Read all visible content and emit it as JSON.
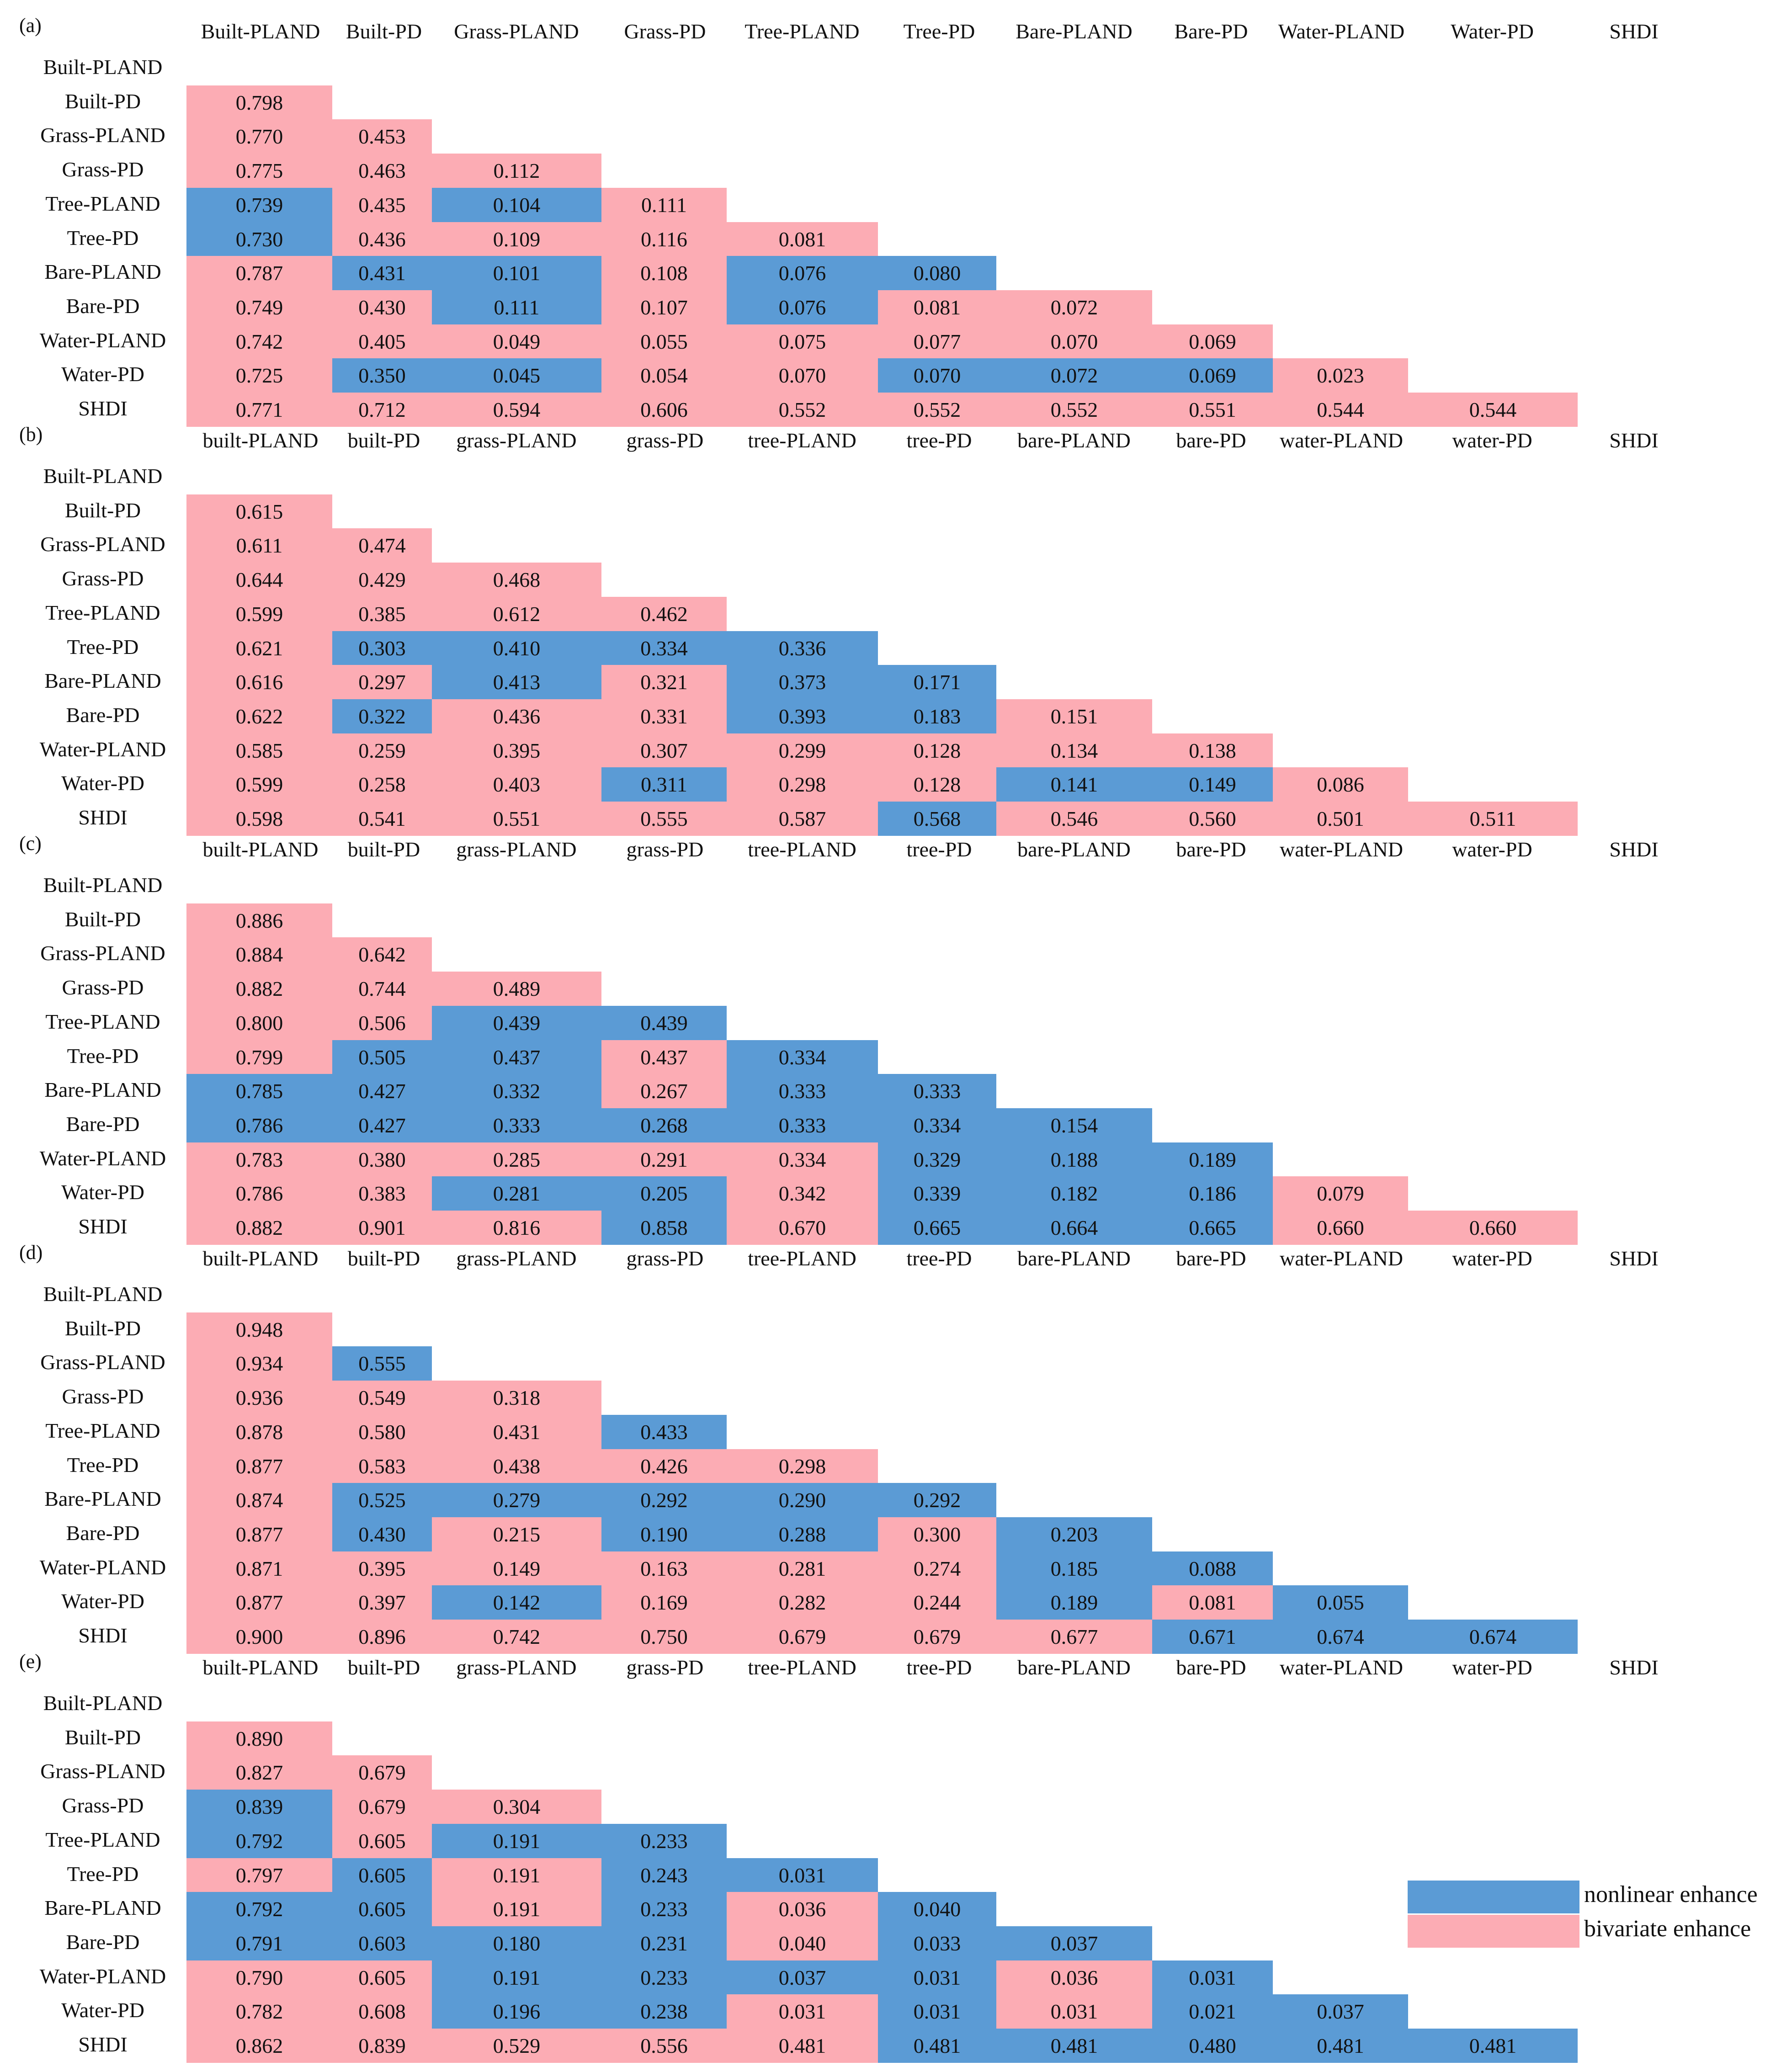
{
  "colors": {
    "nonlinear": "#5B9BD5",
    "bivariate": "#FCACB4"
  },
  "legend": {
    "nonlinear_label": "nonlinear enhance",
    "bivariate_label": "bivariate enhance"
  },
  "chart_data": {
    "type": "table",
    "row_labels": [
      "Built-PLAND",
      "Built-PD",
      "Grass-PLAND",
      "Grass-PD",
      "Tree-PLAND",
      "Tree-PD",
      "Bare-PLAND",
      "Bare-PD",
      "Water-PLAND",
      "Water-PD",
      "SHDI"
    ],
    "enhancement_codes": {
      "N": "nonlinear enhance",
      "B": "bivariate enhance"
    },
    "panels": [
      {
        "label": "(a)",
        "columns": [
          "Built-PLAND",
          "Built-PD",
          "Grass-PLAND",
          "Grass-PD",
          "Tree-PLAND",
          "Tree-PD",
          "Bare-PLAND",
          "Bare-PD",
          "Water-PLAND",
          "Water-PD",
          "SHDI"
        ],
        "values": [
          [],
          [
            "0.798"
          ],
          [
            "0.770",
            "0.453"
          ],
          [
            "0.775",
            "0.463",
            "0.112"
          ],
          [
            "0.739",
            "0.435",
            "0.104",
            "0.111"
          ],
          [
            "0.730",
            "0.436",
            "0.109",
            "0.116",
            "0.081"
          ],
          [
            "0.787",
            "0.431",
            "0.101",
            "0.108",
            "0.076",
            "0.080"
          ],
          [
            "0.749",
            "0.430",
            "0.111",
            "0.107",
            "0.076",
            "0.081",
            "0.072"
          ],
          [
            "0.742",
            "0.405",
            "0.049",
            "0.055",
            "0.075",
            "0.077",
            "0.070",
            "0.069"
          ],
          [
            "0.725",
            "0.350",
            "0.045",
            "0.054",
            "0.070",
            "0.070",
            "0.072",
            "0.069",
            "0.023"
          ],
          [
            "0.771",
            "0.712",
            "0.594",
            "0.606",
            "0.552",
            "0.552",
            "0.552",
            "0.551",
            "0.544",
            "0.544"
          ]
        ],
        "types": [
          [],
          [
            "B"
          ],
          [
            "B",
            "B"
          ],
          [
            "B",
            "B",
            "B"
          ],
          [
            "N",
            "B",
            "N",
            "B"
          ],
          [
            "N",
            "B",
            "B",
            "B",
            "B"
          ],
          [
            "B",
            "N",
            "N",
            "B",
            "N",
            "N"
          ],
          [
            "B",
            "B",
            "N",
            "B",
            "N",
            "B",
            "B"
          ],
          [
            "B",
            "B",
            "B",
            "B",
            "B",
            "B",
            "B",
            "B"
          ],
          [
            "B",
            "N",
            "N",
            "B",
            "B",
            "N",
            "N",
            "N",
            "B"
          ],
          [
            "B",
            "B",
            "B",
            "B",
            "B",
            "B",
            "B",
            "B",
            "B",
            "B"
          ]
        ]
      },
      {
        "label": "(b)",
        "columns": [
          "built-PLAND",
          "built-PD",
          "grass-PLAND",
          "grass-PD",
          "tree-PLAND",
          "tree-PD",
          "bare-PLAND",
          "bare-PD",
          "water-PLAND",
          "water-PD",
          "SHDI"
        ],
        "values": [
          [],
          [
            "0.615"
          ],
          [
            "0.611",
            "0.474"
          ],
          [
            "0.644",
            "0.429",
            "0.468"
          ],
          [
            "0.599",
            "0.385",
            "0.612",
            "0.462"
          ],
          [
            "0.621",
            "0.303",
            "0.410",
            "0.334",
            "0.336"
          ],
          [
            "0.616",
            "0.297",
            "0.413",
            "0.321",
            "0.373",
            "0.171"
          ],
          [
            "0.622",
            "0.322",
            "0.436",
            "0.331",
            "0.393",
            "0.183",
            "0.151"
          ],
          [
            "0.585",
            "0.259",
            "0.395",
            "0.307",
            "0.299",
            "0.128",
            "0.134",
            "0.138"
          ],
          [
            "0.599",
            "0.258",
            "0.403",
            "0.311",
            "0.298",
            "0.128",
            "0.141",
            "0.149",
            "0.086"
          ],
          [
            "0.598",
            "0.541",
            "0.551",
            "0.555",
            "0.587",
            "0.568",
            "0.546",
            "0.560",
            "0.501",
            "0.511"
          ]
        ],
        "types": [
          [],
          [
            "B"
          ],
          [
            "B",
            "B"
          ],
          [
            "B",
            "B",
            "B"
          ],
          [
            "B",
            "B",
            "B",
            "B"
          ],
          [
            "B",
            "N",
            "N",
            "N",
            "N"
          ],
          [
            "B",
            "B",
            "N",
            "B",
            "N",
            "N"
          ],
          [
            "B",
            "N",
            "B",
            "B",
            "N",
            "N",
            "B"
          ],
          [
            "B",
            "B",
            "B",
            "B",
            "B",
            "B",
            "B",
            "B"
          ],
          [
            "B",
            "B",
            "B",
            "N",
            "B",
            "B",
            "N",
            "N",
            "B"
          ],
          [
            "B",
            "B",
            "B",
            "B",
            "B",
            "N",
            "B",
            "B",
            "B",
            "B"
          ]
        ]
      },
      {
        "label": "(c)",
        "columns": [
          "built-PLAND",
          "built-PD",
          "grass-PLAND",
          "grass-PD",
          "tree-PLAND",
          "tree-PD",
          "bare-PLAND",
          "bare-PD",
          "water-PLAND",
          "water-PD",
          "SHDI"
        ],
        "values": [
          [],
          [
            "0.886"
          ],
          [
            "0.884",
            "0.642"
          ],
          [
            "0.882",
            "0.744",
            "0.489"
          ],
          [
            "0.800",
            "0.506",
            "0.439",
            "0.439"
          ],
          [
            "0.799",
            "0.505",
            "0.437",
            "0.437",
            "0.334"
          ],
          [
            "0.785",
            "0.427",
            "0.332",
            "0.267",
            "0.333",
            "0.333"
          ],
          [
            "0.786",
            "0.427",
            "0.333",
            "0.268",
            "0.333",
            "0.334",
            "0.154"
          ],
          [
            "0.783",
            "0.380",
            "0.285",
            "0.291",
            "0.334",
            "0.329",
            "0.188",
            "0.189"
          ],
          [
            "0.786",
            "0.383",
            "0.281",
            "0.205",
            "0.342",
            "0.339",
            "0.182",
            "0.186",
            "0.079"
          ],
          [
            "0.882",
            "0.901",
            "0.816",
            "0.858",
            "0.670",
            "0.665",
            "0.664",
            "0.665",
            "0.660",
            "0.660"
          ]
        ],
        "types": [
          [],
          [
            "B"
          ],
          [
            "B",
            "B"
          ],
          [
            "B",
            "B",
            "B"
          ],
          [
            "B",
            "B",
            "N",
            "N"
          ],
          [
            "B",
            "N",
            "N",
            "B",
            "N"
          ],
          [
            "N",
            "N",
            "N",
            "B",
            "N",
            "N"
          ],
          [
            "N",
            "N",
            "N",
            "N",
            "N",
            "N",
            "N"
          ],
          [
            "B",
            "B",
            "B",
            "B",
            "B",
            "N",
            "N",
            "N"
          ],
          [
            "B",
            "B",
            "N",
            "N",
            "B",
            "N",
            "N",
            "N",
            "B"
          ],
          [
            "B",
            "B",
            "B",
            "N",
            "B",
            "N",
            "N",
            "N",
            "B",
            "B"
          ]
        ]
      },
      {
        "label": "(d)",
        "columns": [
          "built-PLAND",
          "built-PD",
          "grass-PLAND",
          "grass-PD",
          "tree-PLAND",
          "tree-PD",
          "bare-PLAND",
          "bare-PD",
          "water-PLAND",
          "water-PD",
          "SHDI"
        ],
        "values": [
          [],
          [
            "0.948"
          ],
          [
            "0.934",
            "0.555"
          ],
          [
            "0.936",
            "0.549",
            "0.318"
          ],
          [
            "0.878",
            "0.580",
            "0.431",
            "0.433"
          ],
          [
            "0.877",
            "0.583",
            "0.438",
            "0.426",
            "0.298"
          ],
          [
            "0.874",
            "0.525",
            "0.279",
            "0.292",
            "0.290",
            "0.292"
          ],
          [
            "0.877",
            "0.430",
            "0.215",
            "0.190",
            "0.288",
            "0.300",
            "0.203"
          ],
          [
            "0.871",
            "0.395",
            "0.149",
            "0.163",
            "0.281",
            "0.274",
            "0.185",
            "0.088"
          ],
          [
            "0.877",
            "0.397",
            "0.142",
            "0.169",
            "0.282",
            "0.244",
            "0.189",
            "0.081",
            "0.055"
          ],
          [
            "0.900",
            "0.896",
            "0.742",
            "0.750",
            "0.679",
            "0.679",
            "0.677",
            "0.671",
            "0.674",
            "0.674"
          ]
        ],
        "types": [
          [],
          [
            "B"
          ],
          [
            "B",
            "N"
          ],
          [
            "B",
            "B",
            "B"
          ],
          [
            "B",
            "B",
            "B",
            "N"
          ],
          [
            "B",
            "B",
            "B",
            "B",
            "B"
          ],
          [
            "B",
            "N",
            "N",
            "N",
            "N",
            "N"
          ],
          [
            "B",
            "N",
            "B",
            "N",
            "N",
            "B",
            "N"
          ],
          [
            "B",
            "B",
            "B",
            "B",
            "B",
            "B",
            "N",
            "N"
          ],
          [
            "B",
            "B",
            "N",
            "B",
            "B",
            "B",
            "N",
            "B",
            "N"
          ],
          [
            "B",
            "B",
            "B",
            "B",
            "B",
            "B",
            "B",
            "N",
            "N",
            "N"
          ]
        ]
      },
      {
        "label": "(e)",
        "columns": [
          "built-PLAND",
          "built-PD",
          "grass-PLAND",
          "grass-PD",
          "tree-PLAND",
          "tree-PD",
          "bare-PLAND",
          "bare-PD",
          "water-PLAND",
          "water-PD",
          "SHDI"
        ],
        "values": [
          [],
          [
            "0.890"
          ],
          [
            "0.827",
            "0.679"
          ],
          [
            "0.839",
            "0.679",
            "0.304"
          ],
          [
            "0.792",
            "0.605",
            "0.191",
            "0.233"
          ],
          [
            "0.797",
            "0.605",
            "0.191",
            "0.243",
            "0.031"
          ],
          [
            "0.792",
            "0.605",
            "0.191",
            "0.233",
            "0.036",
            "0.040"
          ],
          [
            "0.791",
            "0.603",
            "0.180",
            "0.231",
            "0.040",
            "0.033",
            "0.037"
          ],
          [
            "0.790",
            "0.605",
            "0.191",
            "0.233",
            "0.037",
            "0.031",
            "0.036",
            "0.031"
          ],
          [
            "0.782",
            "0.608",
            "0.196",
            "0.238",
            "0.031",
            "0.031",
            "0.031",
            "0.021",
            "0.037"
          ],
          [
            "0.862",
            "0.839",
            "0.529",
            "0.556",
            "0.481",
            "0.481",
            "0.481",
            "0.480",
            "0.481",
            "0.481"
          ]
        ],
        "types": [
          [],
          [
            "B"
          ],
          [
            "B",
            "B"
          ],
          [
            "N",
            "B",
            "B"
          ],
          [
            "N",
            "B",
            "N",
            "N"
          ],
          [
            "B",
            "N",
            "B",
            "N",
            "N"
          ],
          [
            "N",
            "N",
            "B",
            "N",
            "B",
            "N"
          ],
          [
            "N",
            "N",
            "N",
            "N",
            "B",
            "N",
            "N"
          ],
          [
            "B",
            "B",
            "N",
            "N",
            "N",
            "N",
            "B",
            "N"
          ],
          [
            "B",
            "B",
            "N",
            "N",
            "B",
            "N",
            "B",
            "N",
            "N"
          ],
          [
            "B",
            "B",
            "B",
            "B",
            "B",
            "N",
            "N",
            "N",
            "N",
            "N"
          ]
        ]
      }
    ]
  }
}
